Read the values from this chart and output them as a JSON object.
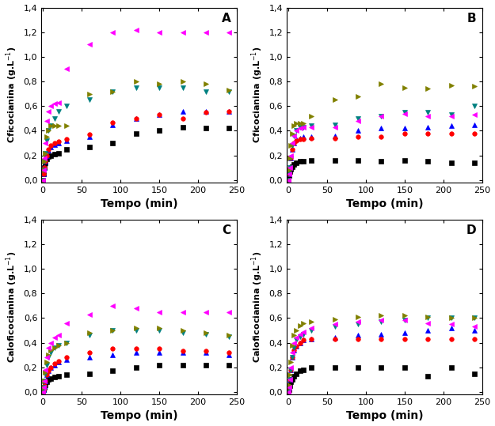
{
  "subplots": {
    "A": {
      "ylabel": "Cficocianina (g.L$^{-1}$)",
      "xlabel": "Tempo (min)",
      "label": "A",
      "series": [
        {
          "color": "#000000",
          "marker": "s",
          "x": [
            0,
            1,
            2,
            3,
            5,
            7,
            10,
            15,
            20,
            30,
            60,
            90,
            120,
            150,
            180,
            210,
            240
          ],
          "y": [
            0.0,
            0.05,
            0.1,
            0.14,
            0.17,
            0.19,
            0.2,
            0.21,
            0.22,
            0.25,
            0.27,
            0.3,
            0.38,
            0.4,
            0.43,
            0.42,
            0.42
          ]
        },
        {
          "color": "#0000FF",
          "marker": "^",
          "x": [
            0,
            1,
            2,
            3,
            5,
            7,
            10,
            15,
            20,
            30,
            60,
            90,
            120,
            150,
            180,
            210,
            240
          ],
          "y": [
            0.0,
            0.05,
            0.1,
            0.15,
            0.2,
            0.24,
            0.27,
            0.29,
            0.3,
            0.32,
            0.35,
            0.45,
            0.5,
            0.53,
            0.56,
            0.56,
            0.56
          ]
        },
        {
          "color": "#FF0000",
          "marker": "o",
          "x": [
            0,
            1,
            2,
            3,
            5,
            7,
            10,
            15,
            20,
            30,
            60,
            90,
            120,
            150,
            180,
            210,
            240
          ],
          "y": [
            0.0,
            0.05,
            0.1,
            0.15,
            0.2,
            0.25,
            0.28,
            0.3,
            0.31,
            0.33,
            0.37,
            0.47,
            0.5,
            0.53,
            0.5,
            0.55,
            0.56
          ]
        },
        {
          "color": "#008080",
          "marker": "v",
          "x": [
            0,
            1,
            2,
            3,
            5,
            7,
            10,
            15,
            20,
            30,
            60,
            90,
            120,
            150,
            180,
            210,
            240
          ],
          "y": [
            0.0,
            0.08,
            0.15,
            0.22,
            0.32,
            0.4,
            0.44,
            0.5,
            0.56,
            0.6,
            0.65,
            0.72,
            0.75,
            0.75,
            0.75,
            0.72,
            0.72
          ]
        },
        {
          "color": "#808000",
          "marker": ">",
          "x": [
            0,
            1,
            2,
            3,
            5,
            7,
            10,
            15,
            20,
            30,
            60,
            90,
            120,
            150,
            180,
            210,
            240
          ],
          "y": [
            0.0,
            0.08,
            0.15,
            0.22,
            0.35,
            0.4,
            0.44,
            0.44,
            0.44,
            0.44,
            0.7,
            0.72,
            0.8,
            0.78,
            0.8,
            0.78,
            0.73
          ]
        },
        {
          "color": "#FF00FF",
          "marker": "<",
          "x": [
            0,
            1,
            2,
            3,
            5,
            7,
            10,
            15,
            20,
            30,
            60,
            90,
            120,
            150,
            180,
            210,
            240
          ],
          "y": [
            0.0,
            0.08,
            0.18,
            0.3,
            0.48,
            0.56,
            0.6,
            0.62,
            0.63,
            0.9,
            1.1,
            1.2,
            1.22,
            1.2,
            1.2,
            1.2,
            1.2
          ]
        }
      ]
    },
    "B": {
      "ylabel": "Cficocianina (g.L$^{-1}$)",
      "xlabel": "Tempo (min)",
      "label": "B",
      "series": [
        {
          "color": "#000000",
          "marker": "s",
          "x": [
            0,
            1,
            2,
            3,
            5,
            7,
            10,
            15,
            20,
            30,
            60,
            90,
            120,
            150,
            180,
            210,
            240
          ],
          "y": [
            0.0,
            0.04,
            0.07,
            0.09,
            0.11,
            0.13,
            0.14,
            0.15,
            0.15,
            0.16,
            0.16,
            0.16,
            0.15,
            0.16,
            0.15,
            0.14,
            0.14
          ]
        },
        {
          "color": "#0000FF",
          "marker": "^",
          "x": [
            0,
            1,
            2,
            3,
            5,
            7,
            10,
            15,
            20,
            30,
            60,
            90,
            120,
            150,
            180,
            210,
            240
          ],
          "y": [
            0.0,
            0.05,
            0.1,
            0.18,
            0.25,
            0.3,
            0.33,
            0.34,
            0.35,
            0.35,
            0.36,
            0.4,
            0.42,
            0.42,
            0.43,
            0.44,
            0.45
          ]
        },
        {
          "color": "#FF0000",
          "marker": "o",
          "x": [
            0,
            1,
            2,
            3,
            5,
            7,
            10,
            15,
            20,
            30,
            60,
            90,
            120,
            150,
            180,
            210,
            240
          ],
          "y": [
            0.0,
            0.05,
            0.1,
            0.18,
            0.25,
            0.3,
            0.32,
            0.33,
            0.33,
            0.34,
            0.34,
            0.35,
            0.35,
            0.38,
            0.38,
            0.38,
            0.38
          ]
        },
        {
          "color": "#008080",
          "marker": "v",
          "x": [
            0,
            1,
            2,
            3,
            5,
            7,
            10,
            15,
            20,
            30,
            60,
            90,
            120,
            150,
            180,
            210,
            240
          ],
          "y": [
            0.0,
            0.05,
            0.1,
            0.18,
            0.28,
            0.36,
            0.4,
            0.43,
            0.43,
            0.44,
            0.45,
            0.5,
            0.52,
            0.55,
            0.55,
            0.53,
            0.6
          ]
        },
        {
          "color": "#808000",
          "marker": ">",
          "x": [
            0,
            1,
            2,
            3,
            5,
            7,
            10,
            15,
            20,
            30,
            60,
            90,
            120,
            150,
            180,
            210,
            240
          ],
          "y": [
            0.0,
            0.08,
            0.18,
            0.28,
            0.38,
            0.44,
            0.46,
            0.46,
            0.46,
            0.52,
            0.65,
            0.68,
            0.78,
            0.75,
            0.74,
            0.77,
            0.76
          ]
        },
        {
          "color": "#FF00FF",
          "marker": "<",
          "x": [
            0,
            1,
            2,
            3,
            5,
            7,
            10,
            15,
            20,
            30,
            60,
            90,
            120,
            150,
            180,
            210,
            240
          ],
          "y": [
            0.0,
            0.05,
            0.1,
            0.2,
            0.3,
            0.36,
            0.4,
            0.42,
            0.43,
            0.43,
            0.43,
            0.48,
            0.52,
            0.54,
            0.52,
            0.52,
            0.53
          ]
        }
      ]
    },
    "C": {
      "ylabel": "Caloficocianina (g.L$^{-1}$)",
      "xlabel": "Tempo (min)",
      "label": "C",
      "series": [
        {
          "color": "#000000",
          "marker": "s",
          "x": [
            0,
            1,
            2,
            3,
            5,
            7,
            10,
            15,
            20,
            30,
            60,
            90,
            120,
            150,
            180,
            210,
            240
          ],
          "y": [
            0.0,
            0.02,
            0.04,
            0.06,
            0.08,
            0.1,
            0.11,
            0.12,
            0.13,
            0.14,
            0.15,
            0.17,
            0.2,
            0.22,
            0.22,
            0.22,
            0.22
          ]
        },
        {
          "color": "#0000FF",
          "marker": "^",
          "x": [
            0,
            1,
            2,
            3,
            5,
            7,
            10,
            15,
            20,
            30,
            60,
            90,
            120,
            150,
            180,
            210,
            240
          ],
          "y": [
            0.0,
            0.02,
            0.05,
            0.09,
            0.14,
            0.17,
            0.2,
            0.22,
            0.24,
            0.26,
            0.28,
            0.3,
            0.32,
            0.32,
            0.32,
            0.32,
            0.3
          ]
        },
        {
          "color": "#FF0000",
          "marker": "o",
          "x": [
            0,
            1,
            2,
            3,
            5,
            7,
            10,
            15,
            20,
            30,
            60,
            90,
            120,
            150,
            180,
            210,
            240
          ],
          "y": [
            0.0,
            0.02,
            0.05,
            0.09,
            0.14,
            0.17,
            0.2,
            0.23,
            0.25,
            0.28,
            0.32,
            0.35,
            0.35,
            0.35,
            0.33,
            0.33,
            0.32
          ]
        },
        {
          "color": "#008080",
          "marker": "v",
          "x": [
            0,
            1,
            2,
            3,
            5,
            7,
            10,
            15,
            20,
            30,
            60,
            90,
            120,
            150,
            180,
            210,
            240
          ],
          "y": [
            0.0,
            0.04,
            0.09,
            0.15,
            0.22,
            0.28,
            0.32,
            0.36,
            0.38,
            0.4,
            0.46,
            0.5,
            0.5,
            0.5,
            0.48,
            0.47,
            0.45
          ]
        },
        {
          "color": "#808000",
          "marker": ">",
          "x": [
            0,
            1,
            2,
            3,
            5,
            7,
            10,
            15,
            20,
            30,
            60,
            90,
            120,
            150,
            180,
            210,
            240
          ],
          "y": [
            0.0,
            0.04,
            0.09,
            0.16,
            0.24,
            0.3,
            0.34,
            0.36,
            0.38,
            0.4,
            0.48,
            0.5,
            0.52,
            0.52,
            0.5,
            0.48,
            0.46
          ]
        },
        {
          "color": "#FF00FF",
          "marker": "<",
          "x": [
            0,
            1,
            2,
            3,
            5,
            7,
            10,
            15,
            20,
            30,
            60,
            90,
            120,
            150,
            180,
            210,
            240
          ],
          "y": [
            0.0,
            0.04,
            0.09,
            0.18,
            0.28,
            0.36,
            0.4,
            0.44,
            0.46,
            0.56,
            0.63,
            0.7,
            0.68,
            0.65,
            0.65,
            0.65,
            0.65
          ]
        }
      ]
    },
    "D": {
      "ylabel": "Caloficocianina (g.L$^{-1}$)",
      "xlabel": "Tempo (min)",
      "label": "D",
      "series": [
        {
          "color": "#000000",
          "marker": "s",
          "x": [
            0,
            1,
            2,
            3,
            5,
            7,
            10,
            15,
            20,
            30,
            60,
            90,
            120,
            150,
            180,
            210,
            240
          ],
          "y": [
            0.0,
            0.02,
            0.05,
            0.08,
            0.1,
            0.13,
            0.15,
            0.17,
            0.18,
            0.2,
            0.2,
            0.2,
            0.2,
            0.2,
            0.13,
            0.2,
            0.15
          ]
        },
        {
          "color": "#0000FF",
          "marker": "^",
          "x": [
            0,
            1,
            2,
            3,
            5,
            7,
            10,
            15,
            20,
            30,
            60,
            90,
            120,
            150,
            180,
            210,
            240
          ],
          "y": [
            0.0,
            0.04,
            0.1,
            0.18,
            0.28,
            0.34,
            0.37,
            0.4,
            0.42,
            0.43,
            0.44,
            0.46,
            0.47,
            0.48,
            0.5,
            0.52,
            0.5
          ]
        },
        {
          "color": "#FF0000",
          "marker": "o",
          "x": [
            0,
            1,
            2,
            3,
            5,
            7,
            10,
            15,
            20,
            30,
            60,
            90,
            120,
            150,
            180,
            210,
            240
          ],
          "y": [
            0.0,
            0.04,
            0.1,
            0.18,
            0.28,
            0.34,
            0.37,
            0.4,
            0.42,
            0.43,
            0.43,
            0.43,
            0.43,
            0.43,
            0.43,
            0.43,
            0.43
          ]
        },
        {
          "color": "#008080",
          "marker": "v",
          "x": [
            0,
            1,
            2,
            3,
            5,
            7,
            10,
            15,
            20,
            30,
            60,
            90,
            120,
            150,
            180,
            210,
            240
          ],
          "y": [
            0.0,
            0.04,
            0.1,
            0.18,
            0.28,
            0.36,
            0.42,
            0.45,
            0.47,
            0.5,
            0.53,
            0.55,
            0.57,
            0.58,
            0.6,
            0.6,
            0.6
          ]
        },
        {
          "color": "#808000",
          "marker": ">",
          "x": [
            0,
            1,
            2,
            3,
            5,
            7,
            10,
            15,
            20,
            30,
            60,
            90,
            120,
            150,
            180,
            210,
            240
          ],
          "y": [
            0.0,
            0.06,
            0.14,
            0.24,
            0.38,
            0.46,
            0.5,
            0.54,
            0.56,
            0.57,
            0.59,
            0.61,
            0.62,
            0.62,
            0.61,
            0.6,
            0.6
          ]
        },
        {
          "color": "#FF00FF",
          "marker": "<",
          "x": [
            0,
            1,
            2,
            3,
            5,
            7,
            10,
            15,
            20,
            30,
            60,
            90,
            120,
            150,
            180,
            210,
            240
          ],
          "y": [
            0.0,
            0.04,
            0.1,
            0.2,
            0.32,
            0.4,
            0.44,
            0.47,
            0.49,
            0.52,
            0.55,
            0.57,
            0.58,
            0.58,
            0.56,
            0.55,
            0.53
          ]
        }
      ]
    }
  },
  "ylim": [
    -0.02,
    1.4
  ],
  "yticks": [
    0.0,
    0.2,
    0.4,
    0.6,
    0.8,
    1.0,
    1.2,
    1.4
  ],
  "xlim": [
    -2,
    250
  ],
  "xticks": [
    0,
    50,
    100,
    150,
    200,
    250
  ],
  "marker_size": 4,
  "linewidth": 0,
  "background_color": "#ffffff",
  "label_fontsize": 10,
  "tick_fontsize": 8,
  "ylabel_fontsize": 8
}
